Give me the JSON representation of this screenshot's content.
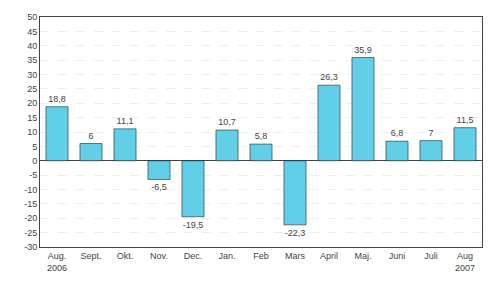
{
  "chart_data": {
    "type": "bar",
    "categories": [
      "Aug.\n2006",
      "Sept.",
      "Okt.",
      "Nov.",
      "Dec.",
      "Jan.",
      "Feb",
      "Mars",
      "April",
      "Maj.",
      "Juni",
      "Juli",
      "Aug\n2007"
    ],
    "values": [
      18.8,
      6,
      11.1,
      -6.5,
      -19.5,
      10.7,
      5.8,
      -22.3,
      26.3,
      35.9,
      6.8,
      7,
      11.5
    ],
    "value_labels": [
      "18,8",
      "6",
      "11,1",
      "-6,5",
      "-19,5",
      "10,7",
      "5,8",
      "-22,3",
      "26,3",
      "35,9",
      "6,8",
      "7",
      "11,5"
    ],
    "color": "#62cfe8",
    "ylim": [
      -30,
      50
    ],
    "yticks": [
      -30,
      -25,
      -20,
      -15,
      -10,
      -5,
      0,
      5,
      10,
      15,
      20,
      25,
      30,
      35,
      40,
      45,
      50
    ],
    "grid": true,
    "data_labels": true
  }
}
